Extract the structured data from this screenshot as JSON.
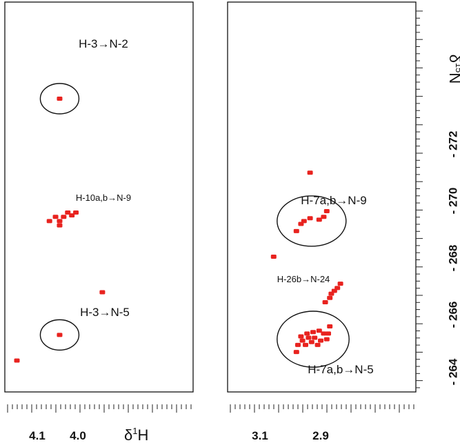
{
  "chart_data": {
    "type": "scatter",
    "x_axis_label_parts": [
      "δ",
      "1",
      "H"
    ],
    "y_axis_label_parts": [
      "δ",
      "15",
      "N"
    ],
    "y_ticks": [
      "- 264",
      "- 266",
      "- 268",
      "- 270",
      "- 272"
    ],
    "y_tick_values": [
      -264,
      -266,
      -268,
      -270,
      -272
    ],
    "panels": [
      {
        "x_ticks": [
          "4.1",
          "4.0"
        ],
        "x_tick_values": [
          4.1,
          4.0
        ],
        "annotations": [
          {
            "text": "H-3→N-2",
            "size": "large"
          },
          {
            "text": "H-10a,b→N-9",
            "size": "small"
          },
          {
            "text": "H-3→N-5",
            "size": "large"
          }
        ],
        "peaks": [
          {
            "x": 3.955,
            "y": -273.6,
            "group": "H-3→N-2"
          },
          {
            "x": 3.995,
            "y": -269.6,
            "group": "H-10a,b→N-9"
          },
          {
            "x": 3.985,
            "y": -269.5,
            "group": "H-10a,b→N-9"
          },
          {
            "x": 3.975,
            "y": -269.6,
            "group": "H-10a,b→N-9"
          },
          {
            "x": 3.965,
            "y": -269.45,
            "group": "H-10a,b→N-9"
          },
          {
            "x": 3.955,
            "y": -269.3,
            "group": "H-10a,b→N-9"
          },
          {
            "x": 3.945,
            "y": -269.45,
            "group": "H-10a,b→N-9"
          },
          {
            "x": 3.955,
            "y": -269.15,
            "group": "H-10a,b→N-9"
          },
          {
            "x": 3.93,
            "y": -269.3,
            "group": "H-10a,b→N-9"
          },
          {
            "x": 4.06,
            "y": -266.8
          },
          {
            "x": 3.955,
            "y": -265.3,
            "group": "H-3→N-5"
          },
          {
            "x": 3.85,
            "y": -264.4
          }
        ]
      },
      {
        "x_ticks": [
          "3.1",
          "2.9"
        ],
        "x_tick_values": [
          3.1,
          2.9
        ],
        "annotations": [
          {
            "text": "H-7a,b→N-9",
            "size": "large"
          },
          {
            "text": "H-26b→N-24",
            "size": "small"
          },
          {
            "text": "H-7a,b→N-5",
            "size": "large"
          }
        ],
        "peaks": [
          {
            "x": 2.865,
            "y": -271.0
          },
          {
            "x": 2.92,
            "y": -269.65,
            "group": "H-7a,b→N-9"
          },
          {
            "x": 2.91,
            "y": -269.45,
            "group": "H-7a,b→N-9"
          },
          {
            "x": 2.895,
            "y": -269.35,
            "group": "H-7a,b→N-9"
          },
          {
            "x": 2.865,
            "y": -269.4,
            "group": "H-7a,b→N-9"
          },
          {
            "x": 2.845,
            "y": -269.3,
            "group": "H-7a,b→N-9"
          },
          {
            "x": 2.835,
            "y": -269.2,
            "group": "H-7a,b→N-9"
          },
          {
            "x": 2.82,
            "y": -268.95,
            "group": "H-7a,b→N-9"
          },
          {
            "x": 2.745,
            "y": -268.05
          },
          {
            "x": 2.965,
            "y": -267.1,
            "group": "H-26b→N-24"
          },
          {
            "x": 2.955,
            "y": -266.95,
            "group": "H-26b→N-24"
          },
          {
            "x": 2.945,
            "y": -266.85,
            "group": "H-26b→N-24"
          },
          {
            "x": 2.935,
            "y": -266.75,
            "group": "H-26b→N-24"
          },
          {
            "x": 2.93,
            "y": -266.6,
            "group": "H-26b→N-24"
          },
          {
            "x": 2.915,
            "y": -266.45,
            "group": "H-26b→N-24"
          },
          {
            "x": 2.93,
            "y": -265.6,
            "group": "H-7a,b→N-5"
          },
          {
            "x": 2.925,
            "y": -265.35,
            "group": "H-7a,b→N-5"
          },
          {
            "x": 2.92,
            "y": -265.15,
            "group": "H-7a,b→N-5"
          },
          {
            "x": 2.91,
            "y": -265.35,
            "group": "H-7a,b→N-5"
          },
          {
            "x": 2.9,
            "y": -265.1,
            "group": "H-7a,b→N-5"
          },
          {
            "x": 2.895,
            "y": -265.45,
            "group": "H-7a,b→N-5"
          },
          {
            "x": 2.89,
            "y": -264.95,
            "group": "H-7a,b→N-5"
          },
          {
            "x": 2.88,
            "y": -265.2,
            "group": "H-7a,b→N-5"
          },
          {
            "x": 2.875,
            "y": -265.4,
            "group": "H-7a,b→N-5"
          },
          {
            "x": 2.87,
            "y": -265.05,
            "group": "H-7a,b→N-5"
          },
          {
            "x": 2.86,
            "y": -265.2,
            "group": "H-7a,b→N-5"
          },
          {
            "x": 2.855,
            "y": -265.35,
            "group": "H-7a,b→N-5"
          },
          {
            "x": 2.85,
            "y": -264.95,
            "group": "H-7a,b→N-5"
          },
          {
            "x": 2.84,
            "y": -265.1,
            "group": "H-7a,b→N-5"
          },
          {
            "x": 2.835,
            "y": -265.25,
            "group": "H-7a,b→N-5"
          },
          {
            "x": 2.825,
            "y": -264.95,
            "group": "H-7a,b→N-5"
          },
          {
            "x": 2.82,
            "y": -264.7,
            "group": "H-7a,b→N-5"
          }
        ]
      }
    ],
    "grid": false,
    "peak_color": "#e8231f"
  }
}
